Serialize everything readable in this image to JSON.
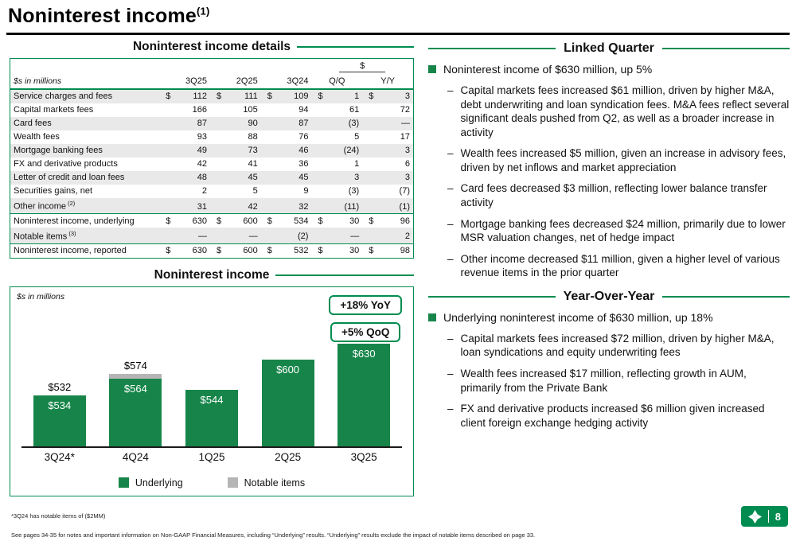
{
  "brand": {
    "green": "#008C50",
    "bar_green": "#17854A",
    "notable_gray": "#b5b5b5",
    "row_shade": "#e9e9e9"
  },
  "header": {
    "title": "Noninterest income",
    "superscript": "(1)"
  },
  "details_table": {
    "title": "Noninterest income details",
    "unit_label": "$s in millions",
    "group_header": "$",
    "columns": [
      "3Q25",
      "2Q25",
      "3Q24",
      "Q/Q",
      "Y/Y"
    ],
    "rows": [
      {
        "label": "Service charges and fees",
        "sup": "",
        "dollar": true,
        "shaded": true,
        "total": false,
        "values": [
          "112",
          "111",
          "109",
          "1",
          "3"
        ]
      },
      {
        "label": "Capital markets fees",
        "sup": "",
        "dollar": false,
        "shaded": false,
        "total": false,
        "values": [
          "166",
          "105",
          "94",
          "61",
          "72"
        ]
      },
      {
        "label": "Card fees",
        "sup": "",
        "dollar": false,
        "shaded": true,
        "total": false,
        "values": [
          "87",
          "90",
          "87",
          "(3)",
          "—"
        ]
      },
      {
        "label": "Wealth fees",
        "sup": "",
        "dollar": false,
        "shaded": false,
        "total": false,
        "values": [
          "93",
          "88",
          "76",
          "5",
          "17"
        ]
      },
      {
        "label": "Mortgage banking fees",
        "sup": "",
        "dollar": false,
        "shaded": true,
        "total": false,
        "values": [
          "49",
          "73",
          "46",
          "(24)",
          "3"
        ]
      },
      {
        "label": "FX and derivative products",
        "sup": "",
        "dollar": false,
        "shaded": false,
        "total": false,
        "values": [
          "42",
          "41",
          "36",
          "1",
          "6"
        ]
      },
      {
        "label": "Letter of credit and loan fees",
        "sup": "",
        "dollar": false,
        "shaded": true,
        "total": false,
        "values": [
          "48",
          "45",
          "45",
          "3",
          "3"
        ]
      },
      {
        "label": "Securities gains, net",
        "sup": "",
        "dollar": false,
        "shaded": false,
        "total": false,
        "values": [
          "2",
          "5",
          "9",
          "(3)",
          "(7)"
        ]
      },
      {
        "label": "Other income",
        "sup": "(2)",
        "dollar": false,
        "shaded": true,
        "total": false,
        "values": [
          "31",
          "42",
          "32",
          "(11)",
          "(1)"
        ]
      },
      {
        "label": "Noninterest income, underlying",
        "sup": "",
        "dollar": true,
        "shaded": false,
        "total": true,
        "values": [
          "630",
          "600",
          "534",
          "30",
          "96"
        ]
      },
      {
        "label": "Notable items",
        "sup": "(3)",
        "dollar": false,
        "shaded": true,
        "total": false,
        "values": [
          "—",
          "—",
          "(2)",
          "—",
          "2"
        ]
      },
      {
        "label": "Noninterest income, reported",
        "sup": "",
        "dollar": true,
        "shaded": false,
        "total": true,
        "values": [
          "630",
          "600",
          "532",
          "30",
          "98"
        ]
      }
    ]
  },
  "chart": {
    "title": "Noninterest income",
    "unit_label": "$s in millions",
    "badges": [
      "+18% YoY",
      "+5% QoQ"
    ],
    "legend": [
      {
        "label": "Underlying",
        "color": "#17854A"
      },
      {
        "label": "Notable items",
        "color": "#b5b5b5"
      }
    ]
  },
  "chart_data": {
    "type": "bar",
    "title": "Noninterest income",
    "ylabel": "$s in millions",
    "categories": [
      "3Q24*",
      "4Q24",
      "1Q25",
      "2Q25",
      "3Q25"
    ],
    "series": [
      {
        "name": "Underlying",
        "values": [
          534,
          564,
          544,
          600,
          630
        ]
      },
      {
        "name": "Notable items",
        "values": [
          0,
          10,
          0,
          0,
          0
        ]
      }
    ],
    "reported_values": [
      532,
      574,
      544,
      600,
      630
    ],
    "bar_labels_inside": [
      "$534",
      "$564",
      "$544",
      "$600",
      "$630"
    ],
    "bar_labels_above": [
      "$532",
      "$574",
      "",
      "",
      ""
    ],
    "ylim": [
      440,
      678
    ],
    "grid": false,
    "legend_position": "bottom",
    "annotations": [
      "+18% YoY",
      "+5% QoQ"
    ]
  },
  "linked_quarter": {
    "heading": "Linked Quarter",
    "bullet": "Noninterest income of $630 million, up 5%",
    "sub_bullets": [
      "Capital markets fees increased $61 million, driven by higher M&A, debt underwriting and loan syndication fees. M&A fees reflect several significant deals pushed from Q2, as well as a broader increase in activity",
      "Wealth fees increased $5 million, given an increase in advisory fees, driven by net inflows and market appreciation",
      "Card fees decreased $3 million, reflecting lower balance transfer activity",
      "Mortgage banking fees decreased $24 million, primarily due to lower MSR valuation changes, net of hedge impact",
      "Other income decreased $11 million, given a higher level of various revenue items in the prior quarter"
    ]
  },
  "year_over_year": {
    "heading": "Year-Over-Year",
    "bullet": "Underlying noninterest income of $630 million, up 18%",
    "sub_bullets": [
      "Capital markets fees increased $72 million, driven by higher M&A, loan syndications and equity underwriting fees",
      "Wealth fees increased $17 million, reflecting growth in AUM, primarily from the Private Bank",
      "FX and derivative products increased $6 million given increased client foreign exchange hedging activity"
    ]
  },
  "footer": {
    "chart_footnote": "*3Q24 has notable items of ($2MM)",
    "page_footnote": "See pages 34-35 for notes and important information on Non-GAAP Financial Measures, including “Underlying” results. “Underlying” results exclude the impact of notable items described on page 33.",
    "page_number": "8"
  },
  "icons": {
    "logo": "bank-logo-pinwheel"
  }
}
